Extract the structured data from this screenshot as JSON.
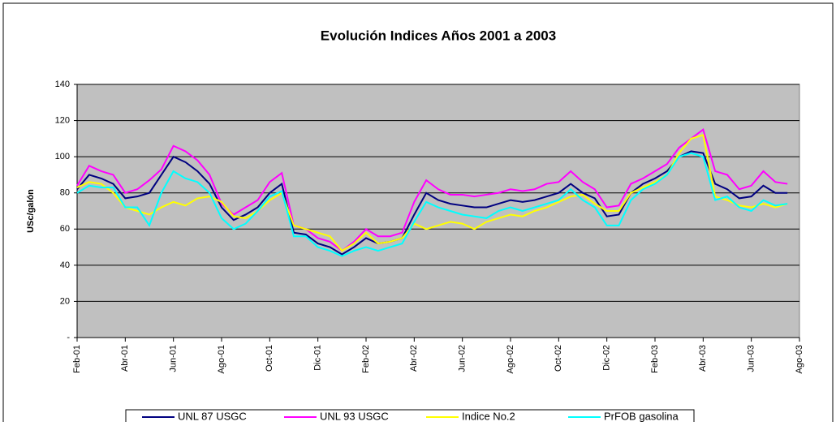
{
  "chart_data": {
    "type": "line",
    "title": "Evolución Indices Años 2001 a 2003",
    "y_label": "USc/galón",
    "categories": [
      "Feb-01",
      null,
      null,
      null,
      "Abr-01",
      null,
      null,
      null,
      "Jun-01",
      null,
      null,
      null,
      "Ago-01",
      null,
      null,
      null,
      "Oct-01",
      null,
      null,
      null,
      "Dic-01",
      null,
      null,
      null,
      "Feb-02",
      null,
      null,
      null,
      "Abr-02",
      null,
      null,
      null,
      "Jun-02",
      null,
      null,
      null,
      "Ago-02",
      null,
      null,
      null,
      "Oct-02",
      null,
      null,
      null,
      "Dic-02",
      null,
      null,
      null,
      "Feb-03",
      null,
      null,
      null,
      "Abr-03",
      null,
      null,
      null,
      "Jun-03",
      null,
      null,
      null,
      "Ago-03"
    ],
    "series": [
      {
        "name": "UNL 87 USGC",
        "color": "#000080",
        "values": [
          82,
          90,
          88,
          85,
          77,
          78,
          80,
          90,
          100,
          97,
          92,
          85,
          72,
          65,
          68,
          72,
          80,
          85,
          58,
          57,
          52,
          50,
          46,
          50,
          55,
          52,
          53,
          55,
          68,
          80,
          76,
          74,
          73,
          72,
          72,
          74,
          76,
          75,
          76,
          78,
          80,
          85,
          80,
          77,
          67,
          68,
          80,
          85,
          88,
          92,
          100,
          103,
          102,
          85,
          82,
          77,
          78,
          84,
          80,
          80,
          null
        ]
      },
      {
        "name": "UNL 93 USGC",
        "color": "#ff00ff",
        "values": [
          84,
          95,
          92,
          90,
          80,
          82,
          87,
          93,
          106,
          103,
          98,
          90,
          74,
          68,
          72,
          76,
          86,
          91,
          62,
          60,
          55,
          53,
          48,
          53,
          60,
          56,
          56,
          58,
          75,
          87,
          82,
          79,
          79,
          78,
          79,
          80,
          82,
          81,
          82,
          85,
          86,
          92,
          86,
          82,
          72,
          73,
          85,
          88,
          92,
          96,
          105,
          110,
          115,
          92,
          90,
          82,
          84,
          92,
          86,
          85,
          null
        ]
      },
      {
        "name": "Indice No.2",
        "color": "#ffff00",
        "values": [
          83,
          86,
          85,
          80,
          72,
          70,
          68,
          72,
          75,
          73,
          77,
          78,
          75,
          67,
          66,
          70,
          76,
          80,
          62,
          60,
          58,
          56,
          48,
          52,
          58,
          52,
          53,
          55,
          63,
          60,
          62,
          64,
          63,
          60,
          64,
          66,
          68,
          67,
          70,
          72,
          75,
          78,
          79,
          74,
          70,
          70,
          80,
          83,
          86,
          90,
          102,
          110,
          112,
          78,
          76,
          73,
          72,
          74,
          72,
          74,
          null
        ]
      },
      {
        "name": "PrFOB gasolina",
        "color": "#00ffff",
        "values": [
          80,
          84,
          83,
          83,
          72,
          72,
          62,
          80,
          92,
          88,
          86,
          80,
          66,
          60,
          63,
          70,
          78,
          81,
          56,
          56,
          50,
          48,
          45,
          48,
          50,
          48,
          50,
          52,
          64,
          75,
          72,
          70,
          68,
          67,
          66,
          70,
          72,
          70,
          72,
          74,
          76,
          82,
          76,
          72,
          62,
          62,
          76,
          82,
          85,
          90,
          100,
          102,
          100,
          76,
          78,
          72,
          70,
          76,
          73,
          74,
          null
        ]
      }
    ],
    "ylim": [
      0,
      140
    ],
    "yticks": [
      {
        "value": 0,
        "label": "-"
      },
      20,
      40,
      60,
      80,
      100,
      120,
      140
    ],
    "grid": true,
    "plot_background": "#c0c0c0",
    "legend": "bottom"
  }
}
